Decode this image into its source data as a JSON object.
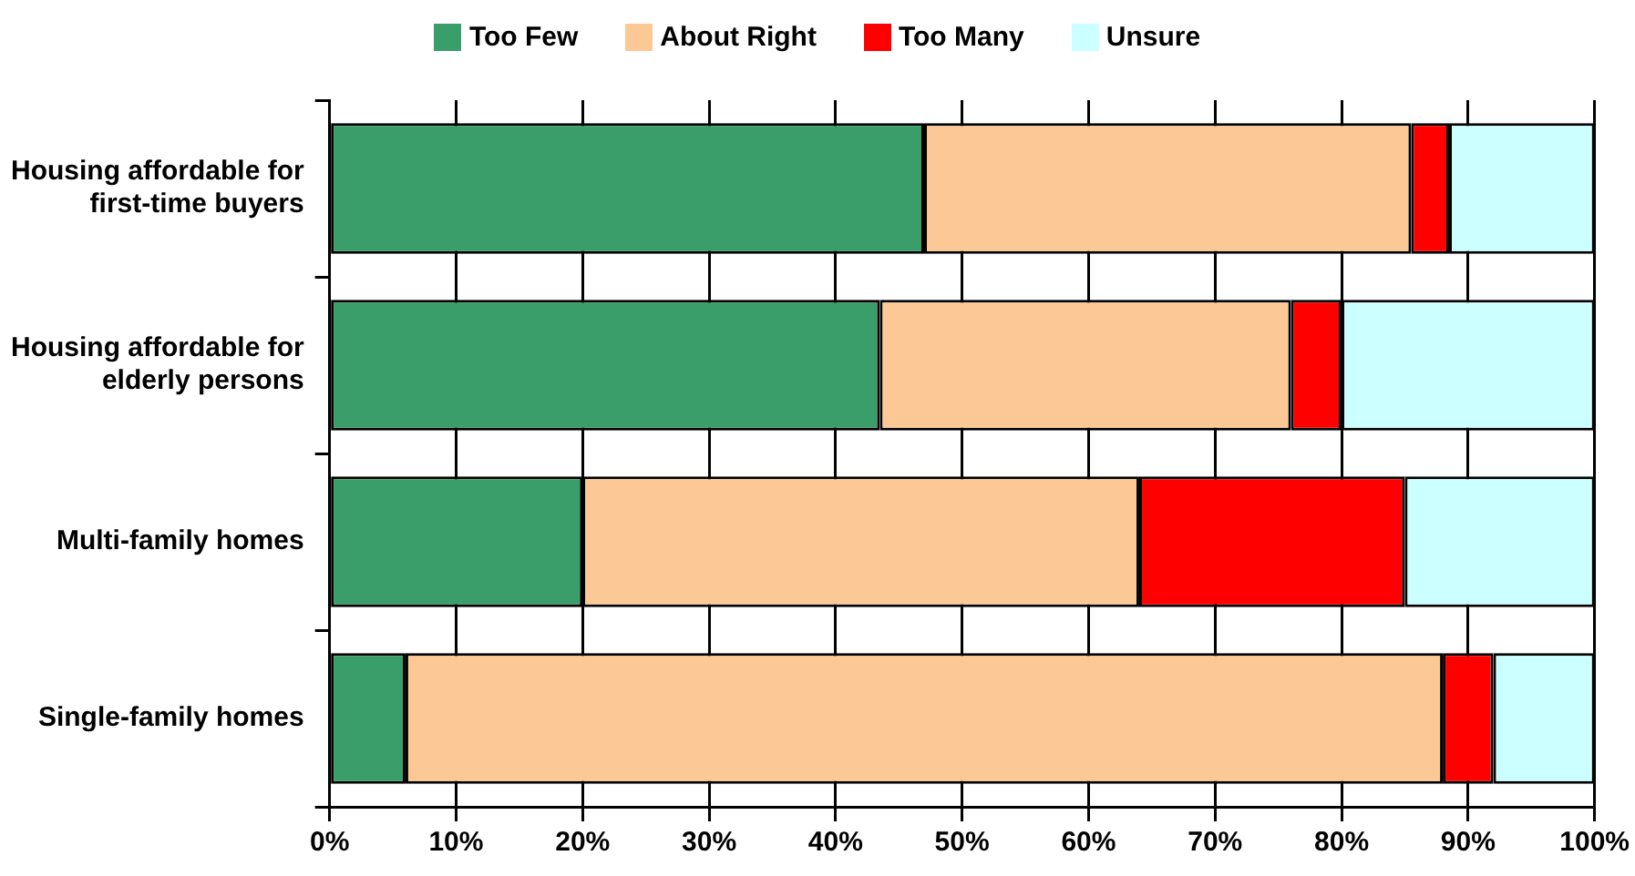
{
  "chart_data": {
    "type": "bar",
    "orientation": "horizontal",
    "stacked": true,
    "categories": [
      "Housing affordable for first-time buyers",
      "Housing affordable for elderly persons",
      "Multi-family homes",
      "Single-family homes"
    ],
    "series": [
      {
        "name": "Too Few",
        "color": "#3a9e6a",
        "values": [
          47,
          43.5,
          20,
          6
        ]
      },
      {
        "name": "About Right",
        "color": "#fcc996",
        "values": [
          38.5,
          32.5,
          44,
          82
        ]
      },
      {
        "name": "Too Many",
        "color": "#ff0000",
        "values": [
          3,
          4,
          21,
          4
        ]
      },
      {
        "name": "Unsure",
        "color": "#ccffff",
        "values": [
          11.5,
          20,
          15,
          8
        ]
      }
    ],
    "xlim": [
      0,
      100
    ],
    "xticks": [
      {
        "value": 0,
        "label": "0%"
      },
      {
        "value": 10,
        "label": "10%"
      },
      {
        "value": 20,
        "label": "20%"
      },
      {
        "value": 30,
        "label": "30%"
      },
      {
        "value": 40,
        "label": "40%"
      },
      {
        "value": 50,
        "label": "50%"
      },
      {
        "value": 60,
        "label": "60%"
      },
      {
        "value": 70,
        "label": "70%"
      },
      {
        "value": 80,
        "label": "80%"
      },
      {
        "value": 90,
        "label": "90%"
      },
      {
        "value": 100,
        "label": "100%"
      }
    ],
    "grid": "x",
    "legend": "top"
  }
}
